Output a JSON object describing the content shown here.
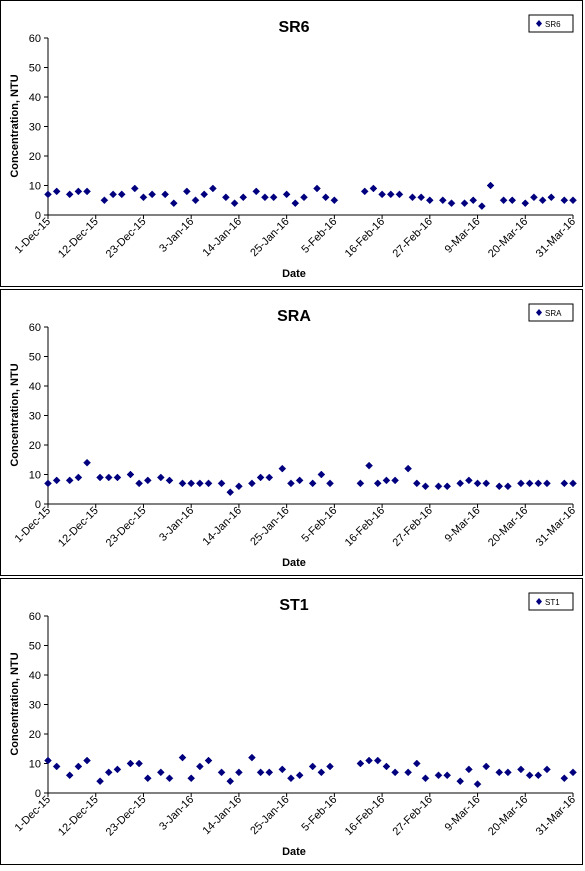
{
  "chart_data": [
    {
      "type": "scatter",
      "title": "SR6",
      "xlabel": "Date",
      "ylabel": "Concentration, NTU",
      "ylim": [
        0,
        60
      ],
      "yticks": [
        0,
        10,
        20,
        30,
        40,
        50,
        60
      ],
      "xlim": [
        "2015-12-01",
        "2016-03-31"
      ],
      "xtick_labels": [
        "1-Dec-15",
        "12-Dec-15",
        "23-Dec-15",
        "3-Jan-16",
        "14-Jan-16",
        "25-Jan-16",
        "5-Feb-16",
        "16-Feb-16",
        "27-Feb-16",
        "9-Mar-16",
        "20-Mar-16",
        "31-Mar-16"
      ],
      "grid": false,
      "legend_position": "top-right",
      "marker_color": "#00007F",
      "series": [
        {
          "name": "SR6",
          "points": [
            [
              "2015-12-01",
              7
            ],
            [
              "2015-12-03",
              8
            ],
            [
              "2015-12-06",
              7
            ],
            [
              "2015-12-08",
              8
            ],
            [
              "2015-12-10",
              8
            ],
            [
              "2015-12-14",
              5
            ],
            [
              "2015-12-16",
              7
            ],
            [
              "2015-12-18",
              7
            ],
            [
              "2015-12-21",
              9
            ],
            [
              "2015-12-23",
              6
            ],
            [
              "2015-12-25",
              7
            ],
            [
              "2015-12-28",
              7
            ],
            [
              "2015-12-30",
              4
            ],
            [
              "2016-01-02",
              8
            ],
            [
              "2016-01-04",
              5
            ],
            [
              "2016-01-06",
              7
            ],
            [
              "2016-01-08",
              9
            ],
            [
              "2016-01-11",
              6
            ],
            [
              "2016-01-13",
              4
            ],
            [
              "2016-01-15",
              6
            ],
            [
              "2016-01-18",
              8
            ],
            [
              "2016-01-20",
              6
            ],
            [
              "2016-01-22",
              6
            ],
            [
              "2016-01-25",
              7
            ],
            [
              "2016-01-27",
              4
            ],
            [
              "2016-01-29",
              6
            ],
            [
              "2016-02-01",
              9
            ],
            [
              "2016-02-03",
              6
            ],
            [
              "2016-02-05",
              5
            ],
            [
              "2016-02-12",
              8
            ],
            [
              "2016-02-14",
              9
            ],
            [
              "2016-02-16",
              7
            ],
            [
              "2016-02-18",
              7
            ],
            [
              "2016-02-20",
              7
            ],
            [
              "2016-02-23",
              6
            ],
            [
              "2016-02-25",
              6
            ],
            [
              "2016-02-27",
              5
            ],
            [
              "2016-03-01",
              5
            ],
            [
              "2016-03-03",
              4
            ],
            [
              "2016-03-06",
              4
            ],
            [
              "2016-03-08",
              5
            ],
            [
              "2016-03-10",
              3
            ],
            [
              "2016-03-12",
              10
            ],
            [
              "2016-03-15",
              5
            ],
            [
              "2016-03-17",
              5
            ],
            [
              "2016-03-20",
              4
            ],
            [
              "2016-03-22",
              6
            ],
            [
              "2016-03-24",
              5
            ],
            [
              "2016-03-26",
              6
            ],
            [
              "2016-03-29",
              5
            ],
            [
              "2016-03-31",
              5
            ]
          ]
        }
      ]
    },
    {
      "type": "scatter",
      "title": "SRA",
      "xlabel": "Date",
      "ylabel": "Concentration, NTU",
      "ylim": [
        0,
        60
      ],
      "yticks": [
        0,
        10,
        20,
        30,
        40,
        50,
        60
      ],
      "xlim": [
        "2015-12-01",
        "2016-03-31"
      ],
      "xtick_labels": [
        "1-Dec-15",
        "12-Dec-15",
        "23-Dec-15",
        "3-Jan-16",
        "14-Jan-16",
        "25-Jan-16",
        "5-Feb-16",
        "16-Feb-16",
        "27-Feb-16",
        "9-Mar-16",
        "20-Mar-16",
        "31-Mar-16"
      ],
      "grid": false,
      "legend_position": "top-right",
      "marker_color": "#00007F",
      "series": [
        {
          "name": "SRA",
          "points": [
            [
              "2015-12-01",
              7
            ],
            [
              "2015-12-03",
              8
            ],
            [
              "2015-12-06",
              8
            ],
            [
              "2015-12-08",
              9
            ],
            [
              "2015-12-10",
              14
            ],
            [
              "2015-12-13",
              9
            ],
            [
              "2015-12-15",
              9
            ],
            [
              "2015-12-17",
              9
            ],
            [
              "2015-12-20",
              10
            ],
            [
              "2015-12-22",
              7
            ],
            [
              "2015-12-24",
              8
            ],
            [
              "2015-12-27",
              9
            ],
            [
              "2015-12-29",
              8
            ],
            [
              "2016-01-01",
              7
            ],
            [
              "2016-01-03",
              7
            ],
            [
              "2016-01-05",
              7
            ],
            [
              "2016-01-07",
              7
            ],
            [
              "2016-01-10",
              7
            ],
            [
              "2016-01-12",
              4
            ],
            [
              "2016-01-14",
              6
            ],
            [
              "2016-01-17",
              7
            ],
            [
              "2016-01-19",
              9
            ],
            [
              "2016-01-21",
              9
            ],
            [
              "2016-01-24",
              12
            ],
            [
              "2016-01-26",
              7
            ],
            [
              "2016-01-28",
              8
            ],
            [
              "2016-01-31",
              7
            ],
            [
              "2016-02-02",
              10
            ],
            [
              "2016-02-04",
              7
            ],
            [
              "2016-02-11",
              7
            ],
            [
              "2016-02-13",
              13
            ],
            [
              "2016-02-15",
              7
            ],
            [
              "2016-02-17",
              8
            ],
            [
              "2016-02-19",
              8
            ],
            [
              "2016-02-22",
              12
            ],
            [
              "2016-02-24",
              7
            ],
            [
              "2016-02-26",
              6
            ],
            [
              "2016-02-29",
              6
            ],
            [
              "2016-03-02",
              6
            ],
            [
              "2016-03-05",
              7
            ],
            [
              "2016-03-07",
              8
            ],
            [
              "2016-03-09",
              7
            ],
            [
              "2016-03-11",
              7
            ],
            [
              "2016-03-14",
              6
            ],
            [
              "2016-03-16",
              6
            ],
            [
              "2016-03-19",
              7
            ],
            [
              "2016-03-21",
              7
            ],
            [
              "2016-03-23",
              7
            ],
            [
              "2016-03-25",
              7
            ],
            [
              "2016-03-29",
              7
            ],
            [
              "2016-03-31",
              7
            ]
          ]
        }
      ]
    },
    {
      "type": "scatter",
      "title": "ST1",
      "xlabel": "Date",
      "ylabel": "Concentration, NTU",
      "ylim": [
        0,
        60
      ],
      "yticks": [
        0,
        10,
        20,
        30,
        40,
        50,
        60
      ],
      "xlim": [
        "2015-12-01",
        "2016-03-31"
      ],
      "xtick_labels": [
        "1-Dec-15",
        "12-Dec-15",
        "23-Dec-15",
        "3-Jan-16",
        "14-Jan-16",
        "25-Jan-16",
        "5-Feb-16",
        "16-Feb-16",
        "27-Feb-16",
        "9-Mar-16",
        "20-Mar-16",
        "31-Mar-16"
      ],
      "grid": false,
      "legend_position": "top-right",
      "marker_color": "#00007F",
      "series": [
        {
          "name": "ST1",
          "points": [
            [
              "2015-12-01",
              11
            ],
            [
              "2015-12-03",
              9
            ],
            [
              "2015-12-06",
              6
            ],
            [
              "2015-12-08",
              9
            ],
            [
              "2015-12-10",
              11
            ],
            [
              "2015-12-13",
              4
            ],
            [
              "2015-12-15",
              7
            ],
            [
              "2015-12-17",
              8
            ],
            [
              "2015-12-20",
              10
            ],
            [
              "2015-12-22",
              10
            ],
            [
              "2015-12-24",
              5
            ],
            [
              "2015-12-27",
              7
            ],
            [
              "2015-12-29",
              5
            ],
            [
              "2016-01-01",
              12
            ],
            [
              "2016-01-03",
              5
            ],
            [
              "2016-01-05",
              9
            ],
            [
              "2016-01-07",
              11
            ],
            [
              "2016-01-10",
              7
            ],
            [
              "2016-01-12",
              4
            ],
            [
              "2016-01-14",
              7
            ],
            [
              "2016-01-17",
              12
            ],
            [
              "2016-01-19",
              7
            ],
            [
              "2016-01-21",
              7
            ],
            [
              "2016-01-24",
              8
            ],
            [
              "2016-01-26",
              5
            ],
            [
              "2016-01-28",
              6
            ],
            [
              "2016-01-31",
              9
            ],
            [
              "2016-02-02",
              7
            ],
            [
              "2016-02-04",
              9
            ],
            [
              "2016-02-11",
              10
            ],
            [
              "2016-02-13",
              11
            ],
            [
              "2016-02-15",
              11
            ],
            [
              "2016-02-17",
              9
            ],
            [
              "2016-02-19",
              7
            ],
            [
              "2016-02-22",
              7
            ],
            [
              "2016-02-24",
              10
            ],
            [
              "2016-02-26",
              5
            ],
            [
              "2016-02-29",
              6
            ],
            [
              "2016-03-02",
              6
            ],
            [
              "2016-03-05",
              4
            ],
            [
              "2016-03-07",
              8
            ],
            [
              "2016-03-09",
              3
            ],
            [
              "2016-03-11",
              9
            ],
            [
              "2016-03-14",
              7
            ],
            [
              "2016-03-16",
              7
            ],
            [
              "2016-03-19",
              8
            ],
            [
              "2016-03-21",
              6
            ],
            [
              "2016-03-23",
              6
            ],
            [
              "2016-03-25",
              8
            ],
            [
              "2016-03-29",
              5
            ],
            [
              "2016-03-31",
              7
            ]
          ]
        }
      ]
    }
  ]
}
